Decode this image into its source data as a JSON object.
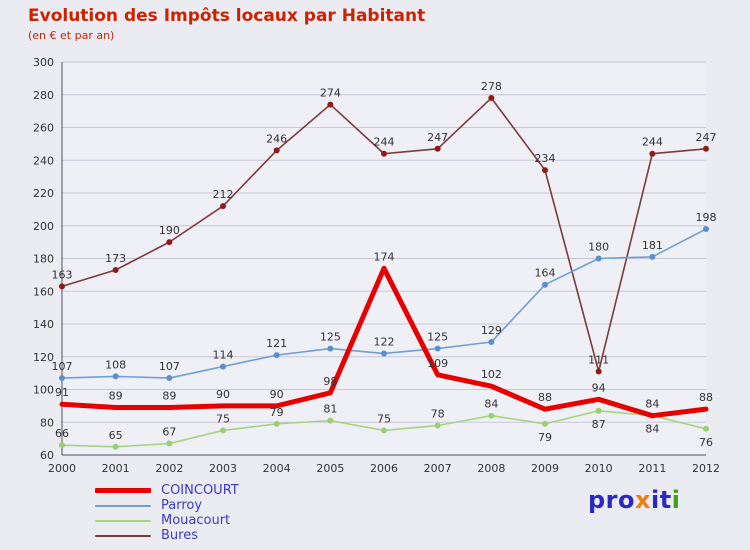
{
  "title": "Evolution des Impôts locaux par Habitant",
  "subtitle": "(en € et par an)",
  "colors": {
    "background": "#ebebf2",
    "title": "#cc2200",
    "legend_text": "#3a3ac8",
    "plot_background": "#efeff6"
  },
  "axis": {
    "label_color": "#333333",
    "grid_color": "#c9c9d6",
    "axis_color": "#50505c"
  },
  "label_color": "#333333",
  "chart_data": {
    "type": "line",
    "x": [
      "2000",
      "2001",
      "2002",
      "2003",
      "2004",
      "2005",
      "2006",
      "2007",
      "2008",
      "2009",
      "2010",
      "2011",
      "2012"
    ],
    "ylim": [
      60,
      300
    ],
    "ytick_step": 20,
    "grid": true,
    "legend_position": "bottom-left",
    "series": [
      {
        "name": "COINCOURT",
        "color": "#e60000",
        "line_width": 5,
        "markers": false,
        "values": [
          91,
          89,
          89,
          90,
          90,
          98,
          174,
          109,
          102,
          88,
          94,
          84,
          88
        ],
        "label_pos": [
          "a",
          "a",
          "a",
          "a",
          "a",
          "a",
          "a",
          "a",
          "a",
          "a",
          "a",
          "a",
          "a"
        ]
      },
      {
        "name": "Parroy",
        "color": "#6f9fd4",
        "line_width": 1.6,
        "markers": true,
        "marker_color": "#5b8fc9",
        "values": [
          107,
          108,
          107,
          114,
          121,
          125,
          122,
          125,
          129,
          164,
          180,
          181,
          198
        ],
        "label_pos": [
          "a",
          "a",
          "a",
          "a",
          "a",
          "a",
          "a",
          "a",
          "a",
          "a",
          "a",
          "a",
          "a"
        ]
      },
      {
        "name": "Mouacourt",
        "color": "#a5d581",
        "line_width": 1.6,
        "markers": true,
        "marker_color": "#9ccf72",
        "values": [
          66,
          65,
          67,
          75,
          79,
          81,
          75,
          78,
          84,
          79,
          87,
          84,
          76
        ],
        "label_pos": [
          "a",
          "a",
          "a",
          "a",
          "a",
          "a",
          "a",
          "a",
          "a",
          "b",
          "b",
          "b",
          "b"
        ]
      },
      {
        "name": "Bures",
        "color": "#7b3b3b",
        "line_width": 1.6,
        "markers": true,
        "marker_color": "#8f1a1a",
        "values": [
          163,
          173,
          190,
          212,
          246,
          274,
          244,
          247,
          278,
          234,
          111,
          244,
          247
        ],
        "label_pos": [
          "a",
          "a",
          "a",
          "a",
          "a",
          "a",
          "a",
          "a",
          "a",
          "a",
          "a",
          "a",
          "a"
        ]
      }
    ]
  },
  "logo": {
    "parts": [
      {
        "text": "pro",
        "color": "#2a2ac0"
      },
      {
        "text": "x",
        "color": "#f07d16"
      },
      {
        "text": "it",
        "color": "#2a2ac0"
      },
      {
        "text": "i",
        "color": "#43a01c"
      }
    ]
  }
}
